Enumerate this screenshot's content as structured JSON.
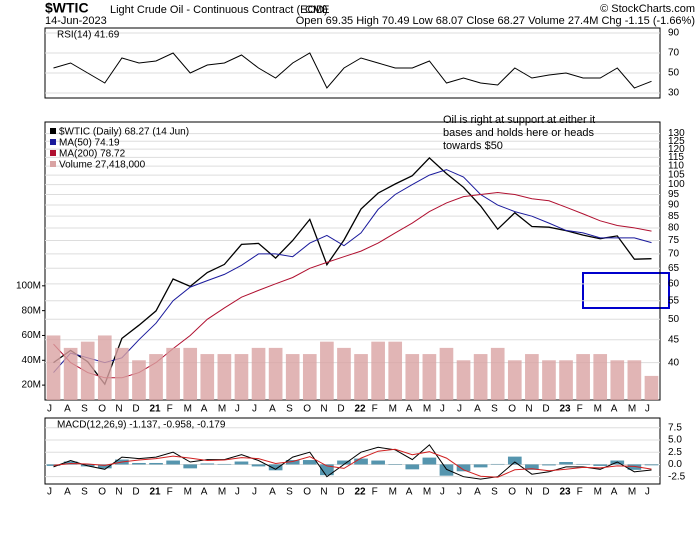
{
  "header": {
    "symbol": "$WTIC",
    "name": "Light Crude Oil - Continuous Contract (EOD)",
    "exchange": "CME",
    "credit": "© StockCharts.com",
    "date": "14-Jun-2023",
    "quote": "Open 69.35  High 70.49  Low 68.07  Close 68.27  Volume 27.4M  Chg -1.15 (-1.66%)"
  },
  "chart_data": [
    {
      "type": "line",
      "title": "RSI(14) 41.69",
      "ylim": [
        25,
        95
      ],
      "yticks": [
        30,
        50,
        70,
        90
      ],
      "grid": true,
      "series": [
        {
          "name": "RSI(14)",
          "color": "#000000",
          "values": [
            55,
            60,
            50,
            40,
            65,
            60,
            62,
            70,
            50,
            58,
            60,
            68,
            55,
            45,
            60,
            70,
            35,
            55,
            65,
            60,
            55,
            55,
            62,
            40,
            45,
            40,
            38,
            55,
            45,
            48,
            50,
            45,
            45,
            55,
            35,
            41.69
          ]
        }
      ]
    },
    {
      "type": "line",
      "log_scale": true,
      "grid": true,
      "categories": [
        "J",
        "A",
        "S",
        "O",
        "N",
        "D",
        "21",
        "F",
        "M",
        "A",
        "M",
        "J",
        "J",
        "A",
        "S",
        "O",
        "N",
        "D",
        "22",
        "F",
        "M",
        "A",
        "M",
        "J",
        "J",
        "A",
        "S",
        "O",
        "N",
        "D",
        "23",
        "F",
        "M",
        "A",
        "M",
        "J"
      ],
      "ylim": [
        33,
        138
      ],
      "yticks": [
        40,
        45,
        50,
        55,
        60,
        65,
        70,
        75,
        80,
        85,
        90,
        95,
        100,
        105,
        110,
        115,
        120,
        125,
        130
      ],
      "y2lim": [
        8,
        232
      ],
      "y2ticks": [
        {
          "value": 20,
          "label": "20M"
        },
        {
          "value": 40,
          "label": "40M"
        },
        {
          "value": 60,
          "label": "60M"
        },
        {
          "value": 80,
          "label": "80M"
        },
        {
          "value": 100,
          "label": "100M"
        }
      ],
      "annotation": [
        "Oil is right at support at either it",
        "bases and holds here or heads",
        "towards $50"
      ],
      "series": [
        {
          "name": "$WTIC (Daily) 68.27 (14 Jun)",
          "color": "#000000",
          "values": [
            40,
            42.6,
            40.2,
            35.8,
            45.3,
            48.5,
            52.2,
            61.5,
            59.2,
            63.6,
            66.3,
            73.5,
            73.9,
            68.5,
            75,
            83.6,
            66.2,
            75.2,
            88.2,
            95.7,
            100.3,
            104.7,
            114.7,
            105.8,
            98.6,
            89.6,
            79.5,
            86.5,
            80.6,
            80.3,
            78.9,
            77.1,
            75.7,
            76.8,
            68.1,
            68.27
          ]
        },
        {
          "name": "MA(50) 74.19",
          "color": "#1a1a9c",
          "values": [
            38,
            42,
            41,
            40,
            41,
            45,
            49,
            55,
            59,
            61,
            63,
            66,
            70,
            70,
            69,
            74,
            77,
            73,
            78,
            88,
            95,
            100,
            105,
            108,
            104,
            95,
            90,
            87,
            85,
            82,
            79,
            78,
            76,
            76,
            76,
            74.19
          ]
        },
        {
          "name": "MA(200) 78.72",
          "color": "#b01030",
          "values": [
            44,
            40,
            38,
            37,
            37,
            38,
            40,
            43,
            46,
            50,
            53,
            56,
            58,
            60,
            62,
            65,
            67,
            69,
            71,
            74,
            78,
            82,
            87,
            91,
            94,
            95,
            96,
            95,
            93,
            92,
            89,
            86,
            83,
            81,
            80,
            78.72
          ]
        },
        {
          "name": "Volume 27,418,000",
          "color": "#d9a3a3",
          "style": "bar",
          "axis": "y2",
          "values": [
            60,
            50,
            55,
            60,
            50,
            40,
            45,
            50,
            50,
            45,
            45,
            45,
            50,
            50,
            45,
            45,
            55,
            50,
            45,
            55,
            55,
            45,
            45,
            50,
            40,
            45,
            50,
            40,
            45,
            40,
            40,
            45,
            45,
            40,
            40,
            27.418
          ]
        }
      ]
    },
    {
      "type": "line",
      "title": "MACD(12,26,9) -1.137, -0.958, -0.179",
      "ylim": [
        -4,
        9.5
      ],
      "grid": true,
      "yticks": [
        -2.5,
        {
          "value": 0,
          "label": "0.0"
        },
        2.5,
        {
          "value": 5,
          "label": "5.0"
        },
        7.5
      ],
      "series": [
        {
          "name": "Histogram",
          "color": "#2a7a9a",
          "style": "bar",
          "values": [
            -0.3,
            0.6,
            -0.4,
            -0.8,
            1.0,
            0.3,
            0.3,
            0.8,
            -0.8,
            0.2,
            0.1,
            0.6,
            -0.4,
            -1.2,
            0.9,
            0.9,
            -2.2,
            0.8,
            1.2,
            0.8,
            -0.1,
            -1.0,
            1.4,
            -2.3,
            -1.4,
            -0.6,
            0.1,
            1.6,
            -1.1,
            -0.2,
            0.5,
            0.1,
            -0.3,
            0.8,
            -1.1,
            -0.179
          ]
        },
        {
          "name": "MACD",
          "color": "#000000",
          "values": [
            -0.5,
            0.8,
            -0.3,
            -1,
            1.5,
            1.2,
            1.5,
            2.5,
            0.5,
            1,
            1,
            2,
            0.8,
            -1,
            1.5,
            2.5,
            -2.5,
            0,
            2.5,
            3.5,
            3,
            1,
            4,
            -1,
            -2.5,
            -3,
            -2.5,
            0.5,
            -2,
            -1.5,
            -0.5,
            -0.5,
            -1,
            0.5,
            -1.5,
            -1.137
          ]
        },
        {
          "name": "Signal",
          "color": "#d02020",
          "values": [
            -0.2,
            0.2,
            0.1,
            -0.2,
            0.5,
            0.9,
            1.2,
            1.7,
            1.3,
            0.8,
            0.9,
            1.4,
            1.2,
            0.2,
            0.6,
            1.6,
            -0.3,
            -0.8,
            1.3,
            2.7,
            3.1,
            2,
            2.6,
            1.3,
            -1.1,
            -2.4,
            -2.6,
            -1.1,
            -0.9,
            -1.3,
            -1,
            -0.6,
            -0.7,
            -0.3,
            -0.4,
            -0.958
          ]
        }
      ]
    }
  ]
}
